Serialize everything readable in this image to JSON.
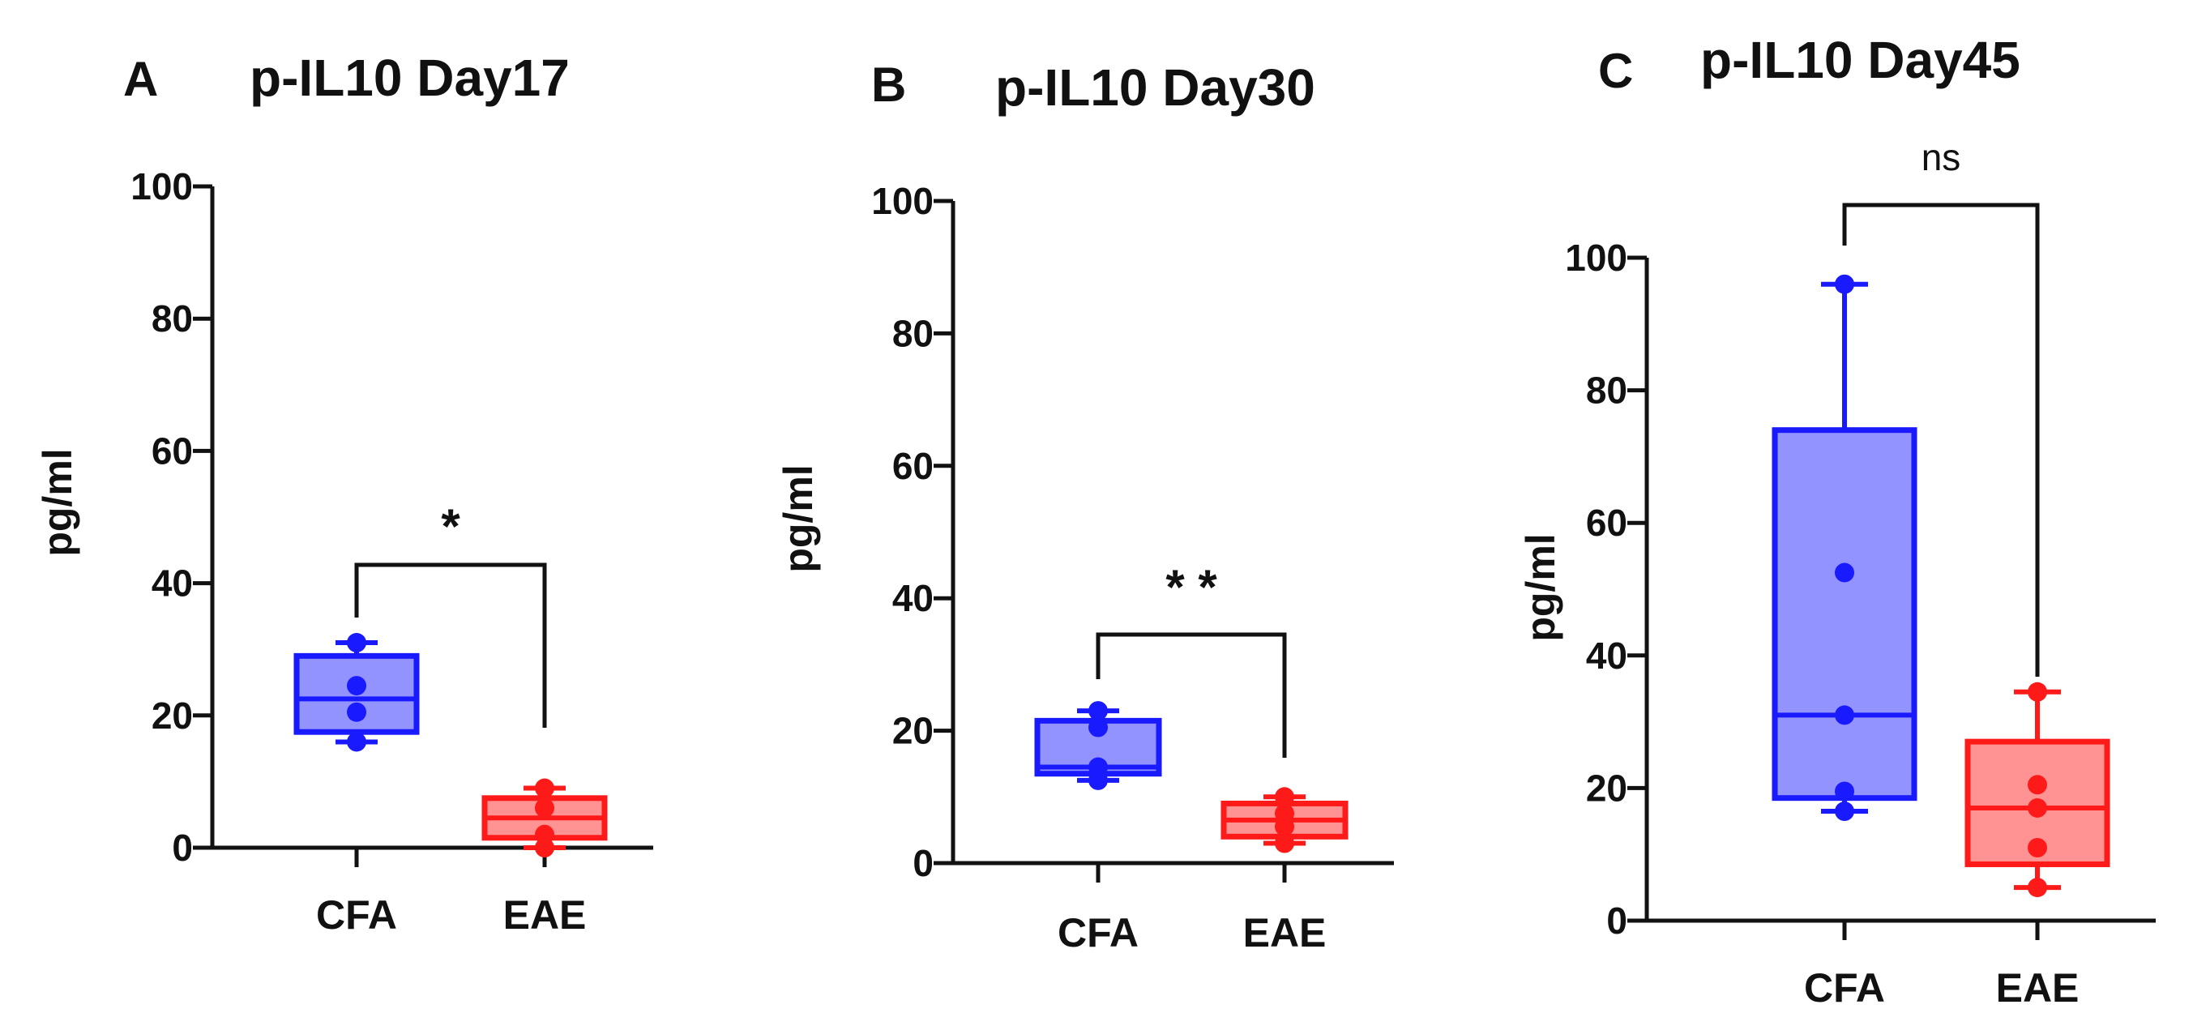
{
  "figure": {
    "panels": [
      {
        "letter": "A",
        "title": "p-IL10 Day17",
        "ylabel": "pg/ml",
        "significance": "*"
      },
      {
        "letter": "B",
        "title": "p-IL10 Day30",
        "ylabel": "pg/ml",
        "significance": "**"
      },
      {
        "letter": "C",
        "title": "p-IL10 Day45",
        "ylabel": "pg/ml",
        "significance": "ns"
      }
    ]
  },
  "chart_data": [
    {
      "type": "box",
      "title": "p-IL10 Day17",
      "ylabel": "pg/ml",
      "ylim": [
        0,
        100
      ],
      "yticks": [
        0,
        20,
        40,
        60,
        80,
        100
      ],
      "categories": [
        "CFA",
        "EAE"
      ],
      "colors": {
        "CFA": "#1a1aff",
        "EAE": "#ff1a1a"
      },
      "groups": [
        {
          "name": "CFA",
          "min": 16,
          "q1": 17.5,
          "median": 22.5,
          "q3": 29,
          "max": 31,
          "points": [
            16,
            20.5,
            24.5,
            31
          ]
        },
        {
          "name": "EAE",
          "min": 0,
          "q1": 1.5,
          "median": 4.5,
          "q3": 7.5,
          "max": 9,
          "points": [
            0,
            2,
            6,
            9
          ]
        }
      ],
      "significance": "*"
    },
    {
      "type": "box",
      "title": "p-IL10 Day30",
      "ylabel": "pg/ml",
      "ylim": [
        0,
        100
      ],
      "yticks": [
        0,
        20,
        40,
        60,
        80,
        100
      ],
      "categories": [
        "CFA",
        "EAE"
      ],
      "colors": {
        "CFA": "#1a1aff",
        "EAE": "#ff1a1a"
      },
      "groups": [
        {
          "name": "CFA",
          "min": 12.5,
          "q1": 13.5,
          "median": 14.5,
          "q3": 21.5,
          "max": 23,
          "points": [
            12.5,
            14.5,
            20.5,
            23
          ]
        },
        {
          "name": "EAE",
          "min": 3,
          "q1": 4,
          "median": 6.5,
          "q3": 9,
          "max": 10,
          "points": [
            3,
            5.5,
            7.5,
            10
          ]
        }
      ],
      "significance": "**"
    },
    {
      "type": "box",
      "title": "p-IL10 Day45",
      "ylabel": "pg/ml",
      "ylim": [
        0,
        100
      ],
      "yticks": [
        0,
        20,
        40,
        60,
        80,
        100
      ],
      "categories": [
        "CFA",
        "EAE"
      ],
      "colors": {
        "CFA": "#1a1aff",
        "EAE": "#ff1a1a"
      },
      "groups": [
        {
          "name": "CFA",
          "min": 16.5,
          "q1": 18.5,
          "median": 31,
          "q3": 74,
          "max": 96,
          "points": [
            16.5,
            19.5,
            31,
            52.5,
            96
          ]
        },
        {
          "name": "EAE",
          "min": 5,
          "q1": 8.5,
          "median": 17,
          "q3": 27,
          "max": 34.5,
          "points": [
            5,
            11,
            17,
            20.5,
            34.5
          ]
        }
      ],
      "significance": "ns"
    }
  ]
}
